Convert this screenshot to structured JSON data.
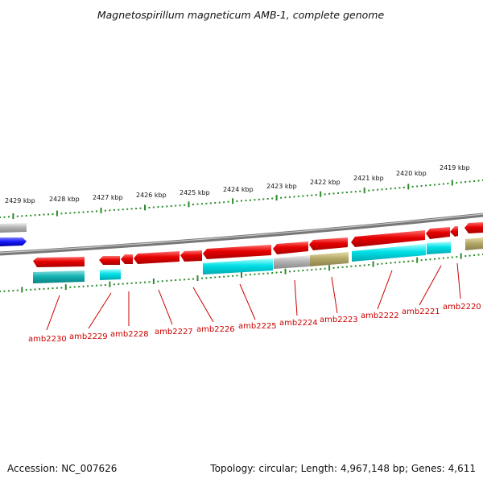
{
  "title": "Magnetospirillum magneticum AMB-1, complete genome",
  "footer": {
    "accession": "Accession: NC_007626",
    "topology": "Topology: circular; Length: 4,967,148 bp; Genes: 4,611"
  },
  "colors": {
    "forward_gene": "#e60000",
    "rna_feature": "#00c8d2",
    "pseudo_feature": "#a8a8a8",
    "other_feature": "#b4a868",
    "reverse_blue": "#1a1aff",
    "backbone": "#888888",
    "ticks": "#2a8a2a",
    "label": "#cc0000"
  },
  "kbp_labels": [
    "2429 kbp",
    "2428 kbp",
    "2427 kbp",
    "2426 kbp",
    "2425 kbp",
    "2424 kbp",
    "2423 kbp",
    "2422 kbp",
    "2421 kbp",
    "2420 kbp",
    "2419 kbp"
  ],
  "genes": [
    "amb2230",
    "amb2229",
    "amb2228",
    "amb2227",
    "amb2226",
    "amb2225",
    "amb2224",
    "amb2223",
    "amb2222",
    "amb2221",
    "amb2220"
  ]
}
